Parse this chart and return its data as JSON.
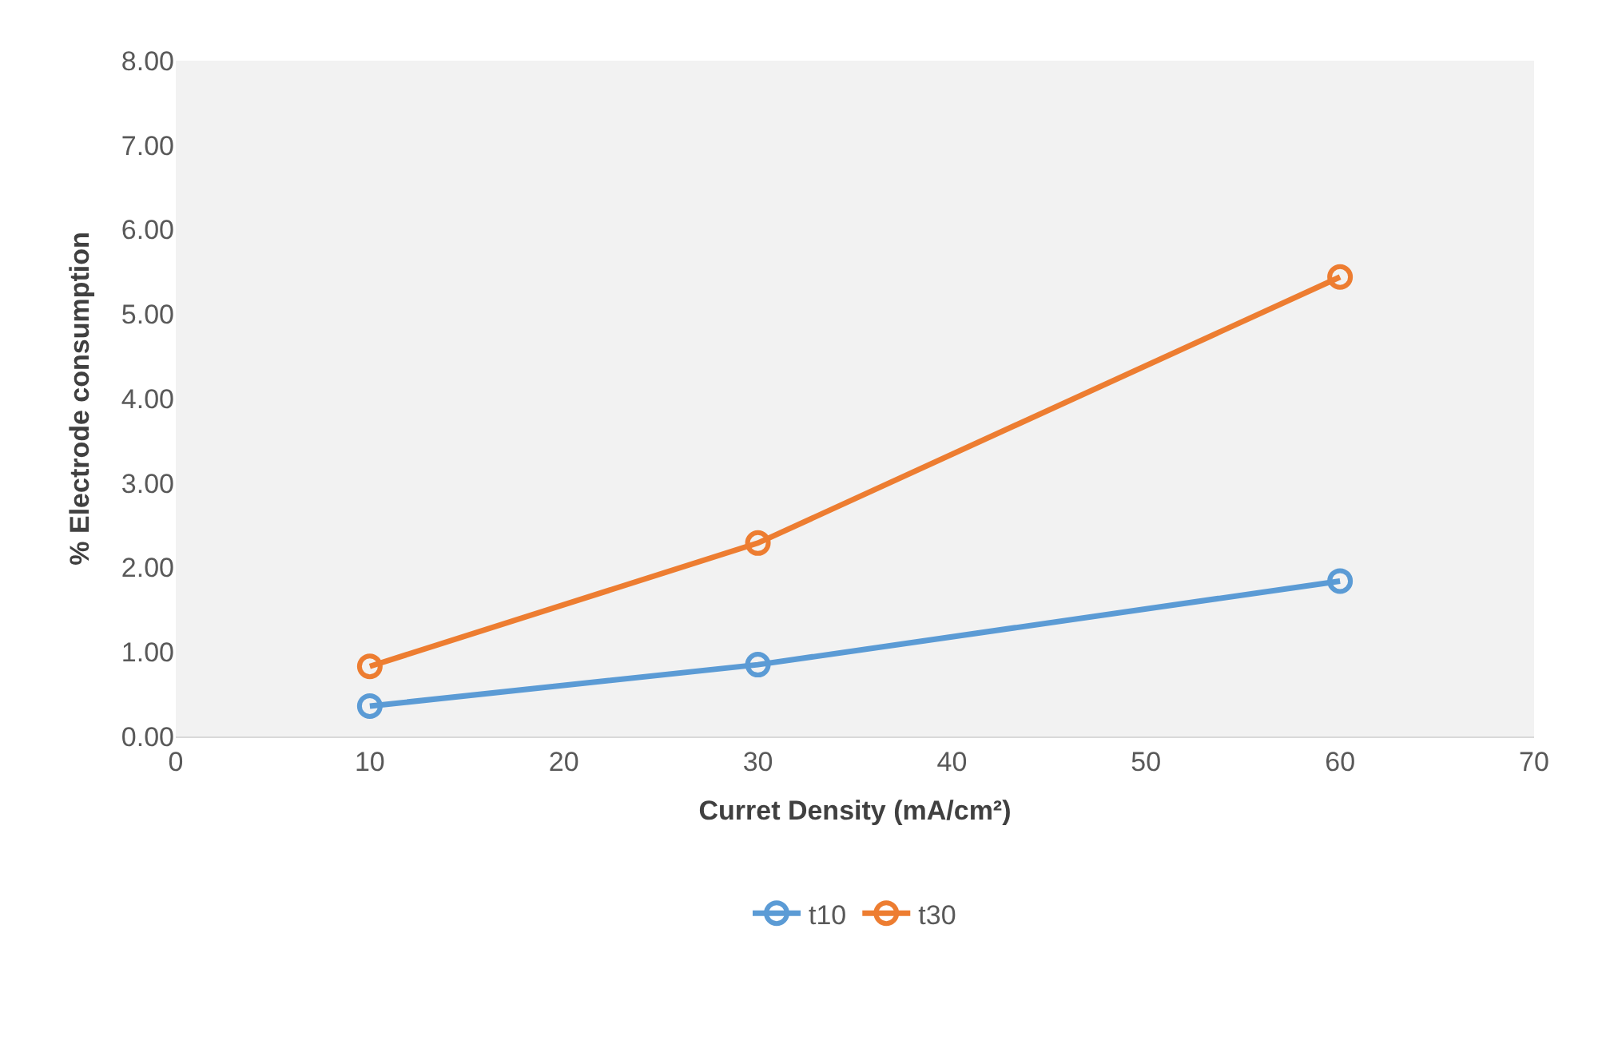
{
  "chart_data": {
    "type": "line",
    "xlabel": "Curret Density (mA/cm²)",
    "ylabel": "% Electrode consumption",
    "x": [
      10,
      30,
      60
    ],
    "series": [
      {
        "name": "t10",
        "color": "#5b9bd5",
        "values": [
          0.36,
          0.85,
          1.84
        ]
      },
      {
        "name": "t30",
        "color": "#ed7d31",
        "values": [
          0.83,
          2.29,
          5.44
        ]
      }
    ],
    "xlim": [
      0,
      70
    ],
    "xticks": [
      0,
      10,
      20,
      30,
      40,
      50,
      60,
      70
    ],
    "ylim": [
      0,
      8
    ],
    "yticks": [
      {
        "value": 0,
        "label": "0.00"
      },
      {
        "value": 1,
        "label": "1.00"
      },
      {
        "value": 2,
        "label": "2.00"
      },
      {
        "value": 3,
        "label": "3.00"
      },
      {
        "value": 4,
        "label": "4.00"
      },
      {
        "value": 5,
        "label": "5.00"
      },
      {
        "value": 6,
        "label": "6.00"
      },
      {
        "value": 7,
        "label": "7.00"
      },
      {
        "value": 8,
        "label": "8.00"
      }
    ],
    "grid": false,
    "legend": "bottom",
    "marker": "circle",
    "line_style": "solid"
  }
}
